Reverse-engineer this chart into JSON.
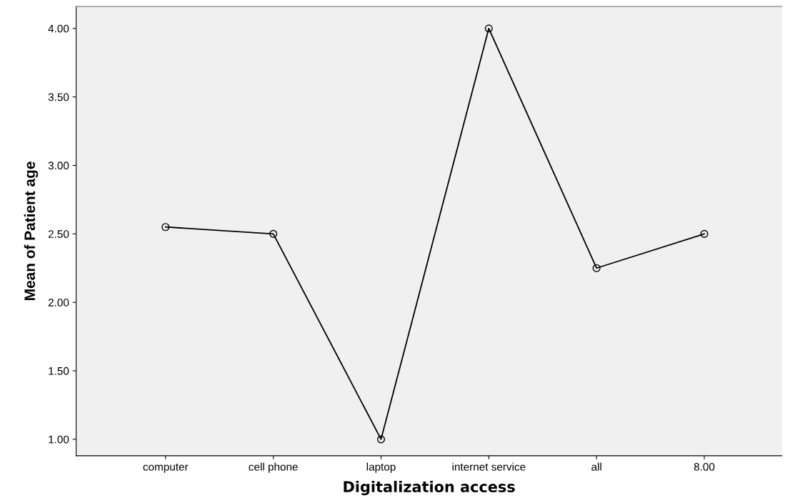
{
  "chart_data": {
    "type": "line",
    "xlabel": "Digitalization access",
    "ylabel": "Mean of Patient age",
    "categories": [
      "computer",
      "cell phone",
      "laptop",
      "internet service",
      "all",
      "8.00"
    ],
    "series": [
      {
        "color": "#000000",
        "values": [
          2.55,
          2.5,
          1.0,
          4.0,
          2.25,
          2.5
        ]
      }
    ],
    "ylim": [
      0.88,
      4.16
    ],
    "yticks": [
      {
        "value": 1,
        "label": "1.00"
      },
      {
        "value": 1.5,
        "label": "1.50"
      },
      {
        "value": 2,
        "label": "2.00"
      },
      {
        "value": 2.5,
        "label": "2.50"
      },
      {
        "value": 3,
        "label": "3.00"
      },
      {
        "value": 3.5,
        "label": "3.50"
      },
      {
        "value": 4,
        "label": "4.00"
      }
    ],
    "marker": "circle",
    "line_style": "solid",
    "grid": false,
    "legend": false
  }
}
